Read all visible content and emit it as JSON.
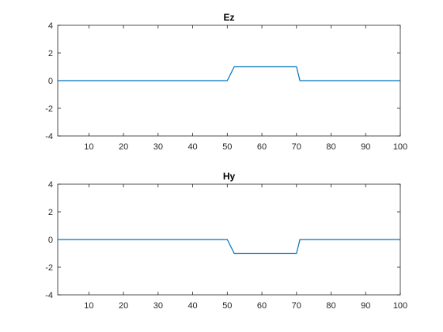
{
  "chart_data": [
    {
      "type": "line",
      "title": "Ez",
      "xlabel": "",
      "ylabel": "",
      "xlim": [
        1,
        100
      ],
      "ylim": [
        -4,
        4
      ],
      "xticks": [
        10,
        20,
        30,
        40,
        50,
        60,
        70,
        80,
        90,
        100
      ],
      "yticks": [
        -4,
        -2,
        0,
        2,
        4
      ],
      "grid": false,
      "series": [
        {
          "color": "#0072BD",
          "x": [
            1,
            50,
            52,
            70,
            71,
            100
          ],
          "y": [
            0,
            0,
            1,
            1,
            0,
            0
          ]
        }
      ]
    },
    {
      "type": "line",
      "title": "Hy",
      "xlabel": "",
      "ylabel": "",
      "xlim": [
        1,
        100
      ],
      "ylim": [
        -4,
        4
      ],
      "xticks": [
        10,
        20,
        30,
        40,
        50,
        60,
        70,
        80,
        90,
        100
      ],
      "yticks": [
        -4,
        -2,
        0,
        2,
        4
      ],
      "grid": false,
      "series": [
        {
          "color": "#0072BD",
          "x": [
            1,
            50,
            52,
            70,
            71,
            100
          ],
          "y": [
            0,
            0,
            -1,
            -1,
            0,
            0
          ]
        }
      ]
    }
  ]
}
